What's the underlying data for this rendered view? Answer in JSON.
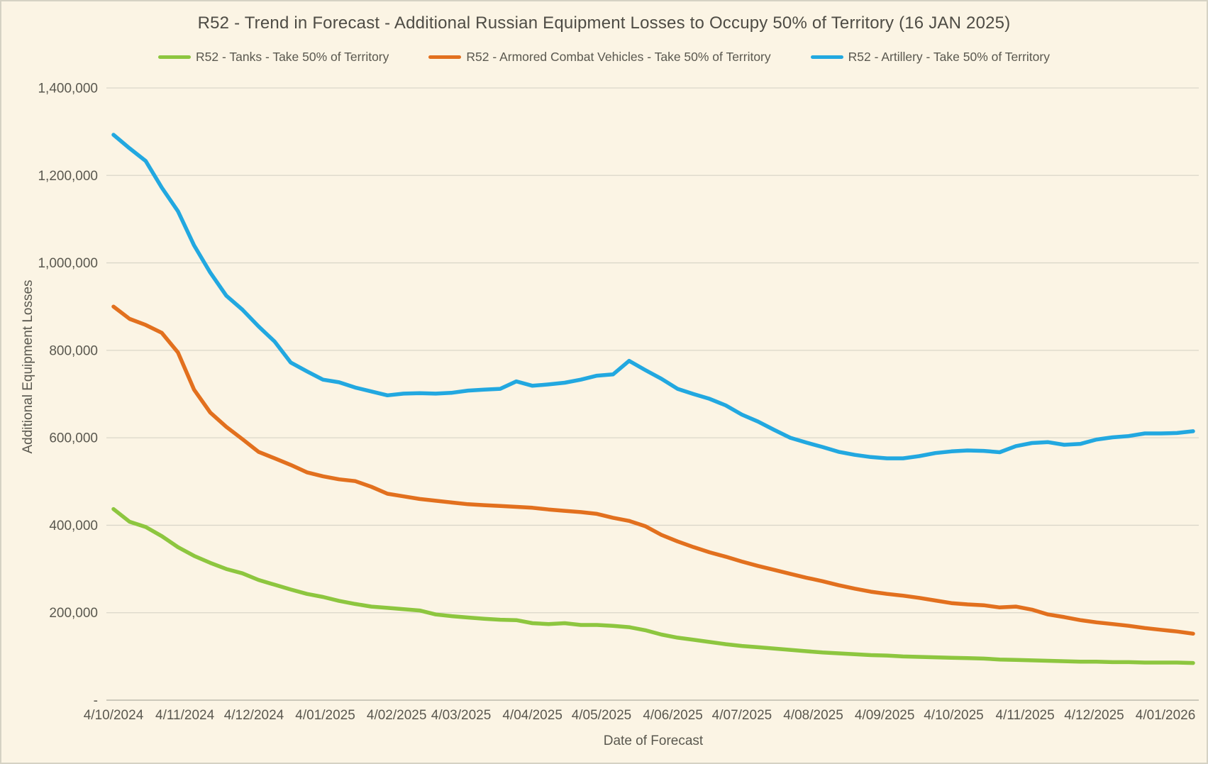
{
  "theme": {
    "background": "#fbf4e4",
    "grid": "#dbd7c9",
    "axis_line": "#bdb9ab",
    "text": "#5a584f",
    "title_text": "#4e4c45"
  },
  "chart_data": {
    "type": "line",
    "title": "R52 - Trend in Forecast - Additional Russian Equipment Losses to Occupy 50% of Territory (16 JAN 2025)",
    "xlabel": "Date of Forecast",
    "ylabel": "Additional Equipment Losses",
    "ylim": [
      0,
      1400000
    ],
    "grid": "horizontal",
    "legend_position": "top",
    "y_ticks": [
      {
        "value": 0,
        "label": "-"
      },
      {
        "value": 200000,
        "label": "200,000"
      },
      {
        "value": 400000,
        "label": "400,000"
      },
      {
        "value": 600000,
        "label": "600,000"
      },
      {
        "value": 800000,
        "label": "800,000"
      },
      {
        "value": 1000000,
        "label": "1,000,000"
      },
      {
        "value": 1200000,
        "label": "1,200,000"
      },
      {
        "value": 1400000,
        "label": "1,400,000"
      }
    ],
    "x_ticks": [
      {
        "label": "4/10/2024",
        "day": 0
      },
      {
        "label": "4/11/2024",
        "day": 31
      },
      {
        "label": "4/12/2024",
        "day": 61
      },
      {
        "label": "4/01/2025",
        "day": 92
      },
      {
        "label": "4/02/2025",
        "day": 123
      },
      {
        "label": "4/03/2025",
        "day": 151
      },
      {
        "label": "4/04/2025",
        "day": 182
      },
      {
        "label": "4/05/2025",
        "day": 212
      },
      {
        "label": "4/06/2025",
        "day": 243
      },
      {
        "label": "4/07/2025",
        "day": 273
      },
      {
        "label": "4/08/2025",
        "day": 304
      },
      {
        "label": "4/09/2025",
        "day": 335
      },
      {
        "label": "4/10/2025",
        "day": 365
      },
      {
        "label": "4/11/2025",
        "day": 396
      },
      {
        "label": "4/12/2025",
        "day": 426
      },
      {
        "label": "4/01/2026",
        "day": 457
      }
    ],
    "total_days": 469,
    "point_interval_days": 7,
    "x_dates": [
      "4/10/2024",
      "11/10/2024",
      "18/10/2024",
      "25/10/2024",
      "1/11/2024",
      "8/11/2024",
      "15/11/2024",
      "22/11/2024",
      "29/11/2024",
      "6/12/2024",
      "13/12/2024",
      "20/12/2024",
      "27/12/2024",
      "3/01/2025",
      "10/01/2025",
      "17/01/2025",
      "24/01/2025",
      "31/01/2025",
      "7/02/2025",
      "14/02/2025",
      "21/02/2025",
      "28/02/2025",
      "7/03/2025",
      "14/03/2025",
      "21/03/2025",
      "28/03/2025",
      "4/04/2025",
      "11/04/2025",
      "18/04/2025",
      "25/04/2025",
      "2/05/2025",
      "9/05/2025",
      "16/05/2025",
      "23/05/2025",
      "30/05/2025",
      "6/06/2025",
      "13/06/2025",
      "20/06/2025",
      "27/06/2025",
      "4/07/2025",
      "11/07/2025",
      "18/07/2025",
      "25/07/2025",
      "1/08/2025",
      "8/08/2025",
      "15/08/2025",
      "22/08/2025",
      "29/08/2025",
      "5/09/2025",
      "12/09/2025",
      "19/09/2025",
      "26/09/2025",
      "3/10/2025",
      "10/10/2025",
      "17/10/2025",
      "24/10/2025",
      "31/10/2025",
      "7/11/2025",
      "14/11/2025",
      "21/11/2025",
      "28/11/2025",
      "5/12/2025",
      "12/12/2025",
      "19/12/2025",
      "26/12/2025",
      "2/01/2026",
      "9/01/2026",
      "16/01/2026"
    ],
    "series": [
      {
        "name": "R52 - Tanks - Take 50% of Territory",
        "color": "#8dc63f",
        "values": [
          437000,
          408000,
          396000,
          375000,
          350000,
          330000,
          314000,
          300000,
          290000,
          275000,
          264000,
          253000,
          243000,
          236000,
          227000,
          220000,
          214000,
          211000,
          208000,
          205000,
          196000,
          192000,
          189000,
          186000,
          184000,
          183000,
          176000,
          174000,
          176000,
          172000,
          172000,
          170000,
          167000,
          160000,
          150000,
          143000,
          138000,
          133000,
          128000,
          124000,
          121000,
          118000,
          115000,
          112000,
          109000,
          107000,
          105000,
          103000,
          102000,
          100000,
          99000,
          98000,
          97000,
          96000,
          95000,
          93000,
          92000,
          91000,
          90000,
          89000,
          88000,
          88000,
          87000,
          87000,
          86000,
          86000,
          86000,
          85000
        ]
      },
      {
        "name": "R52 - Armored Combat Vehicles - Take 50% of Territory",
        "color": "#e2701e",
        "values": [
          900000,
          872000,
          858000,
          840000,
          795000,
          710000,
          658000,
          625000,
          597000,
          568000,
          553000,
          538000,
          521000,
          512000,
          505000,
          501000,
          488000,
          472000,
          466000,
          460000,
          456000,
          452000,
          448000,
          446000,
          444000,
          442000,
          440000,
          436000,
          433000,
          430000,
          426000,
          417000,
          410000,
          398000,
          378000,
          363000,
          350000,
          338000,
          328000,
          317000,
          307000,
          298000,
          289000,
          280000,
          272000,
          263000,
          255000,
          248000,
          243000,
          239000,
          234000,
          228000,
          222000,
          219000,
          217000,
          212000,
          214000,
          207000,
          196000,
          190000,
          183000,
          178000,
          174000,
          170000,
          165000,
          161000,
          157000,
          152000
        ]
      },
      {
        "name": "R52 - Artillery - Take 50% of Territory",
        "color": "#22a8e0",
        "values": [
          1293000,
          1262000,
          1233000,
          1172000,
          1118000,
          1040000,
          978000,
          925000,
          893000,
          855000,
          820000,
          772000,
          752000,
          733000,
          727000,
          715000,
          706000,
          697000,
          701000,
          702000,
          701000,
          703000,
          708000,
          710000,
          712000,
          729000,
          719000,
          722000,
          726000,
          733000,
          742000,
          745000,
          776000,
          755000,
          735000,
          712000,
          700000,
          689000,
          674000,
          653000,
          637000,
          618000,
          600000,
          589000,
          579000,
          568000,
          561000,
          556000,
          553000,
          553000,
          558000,
          565000,
          569000,
          571000,
          570000,
          567000,
          581000,
          588000,
          590000,
          584000,
          586000,
          596000,
          601000,
          604000,
          610000,
          610000,
          611000,
          615000
        ]
      }
    ]
  }
}
